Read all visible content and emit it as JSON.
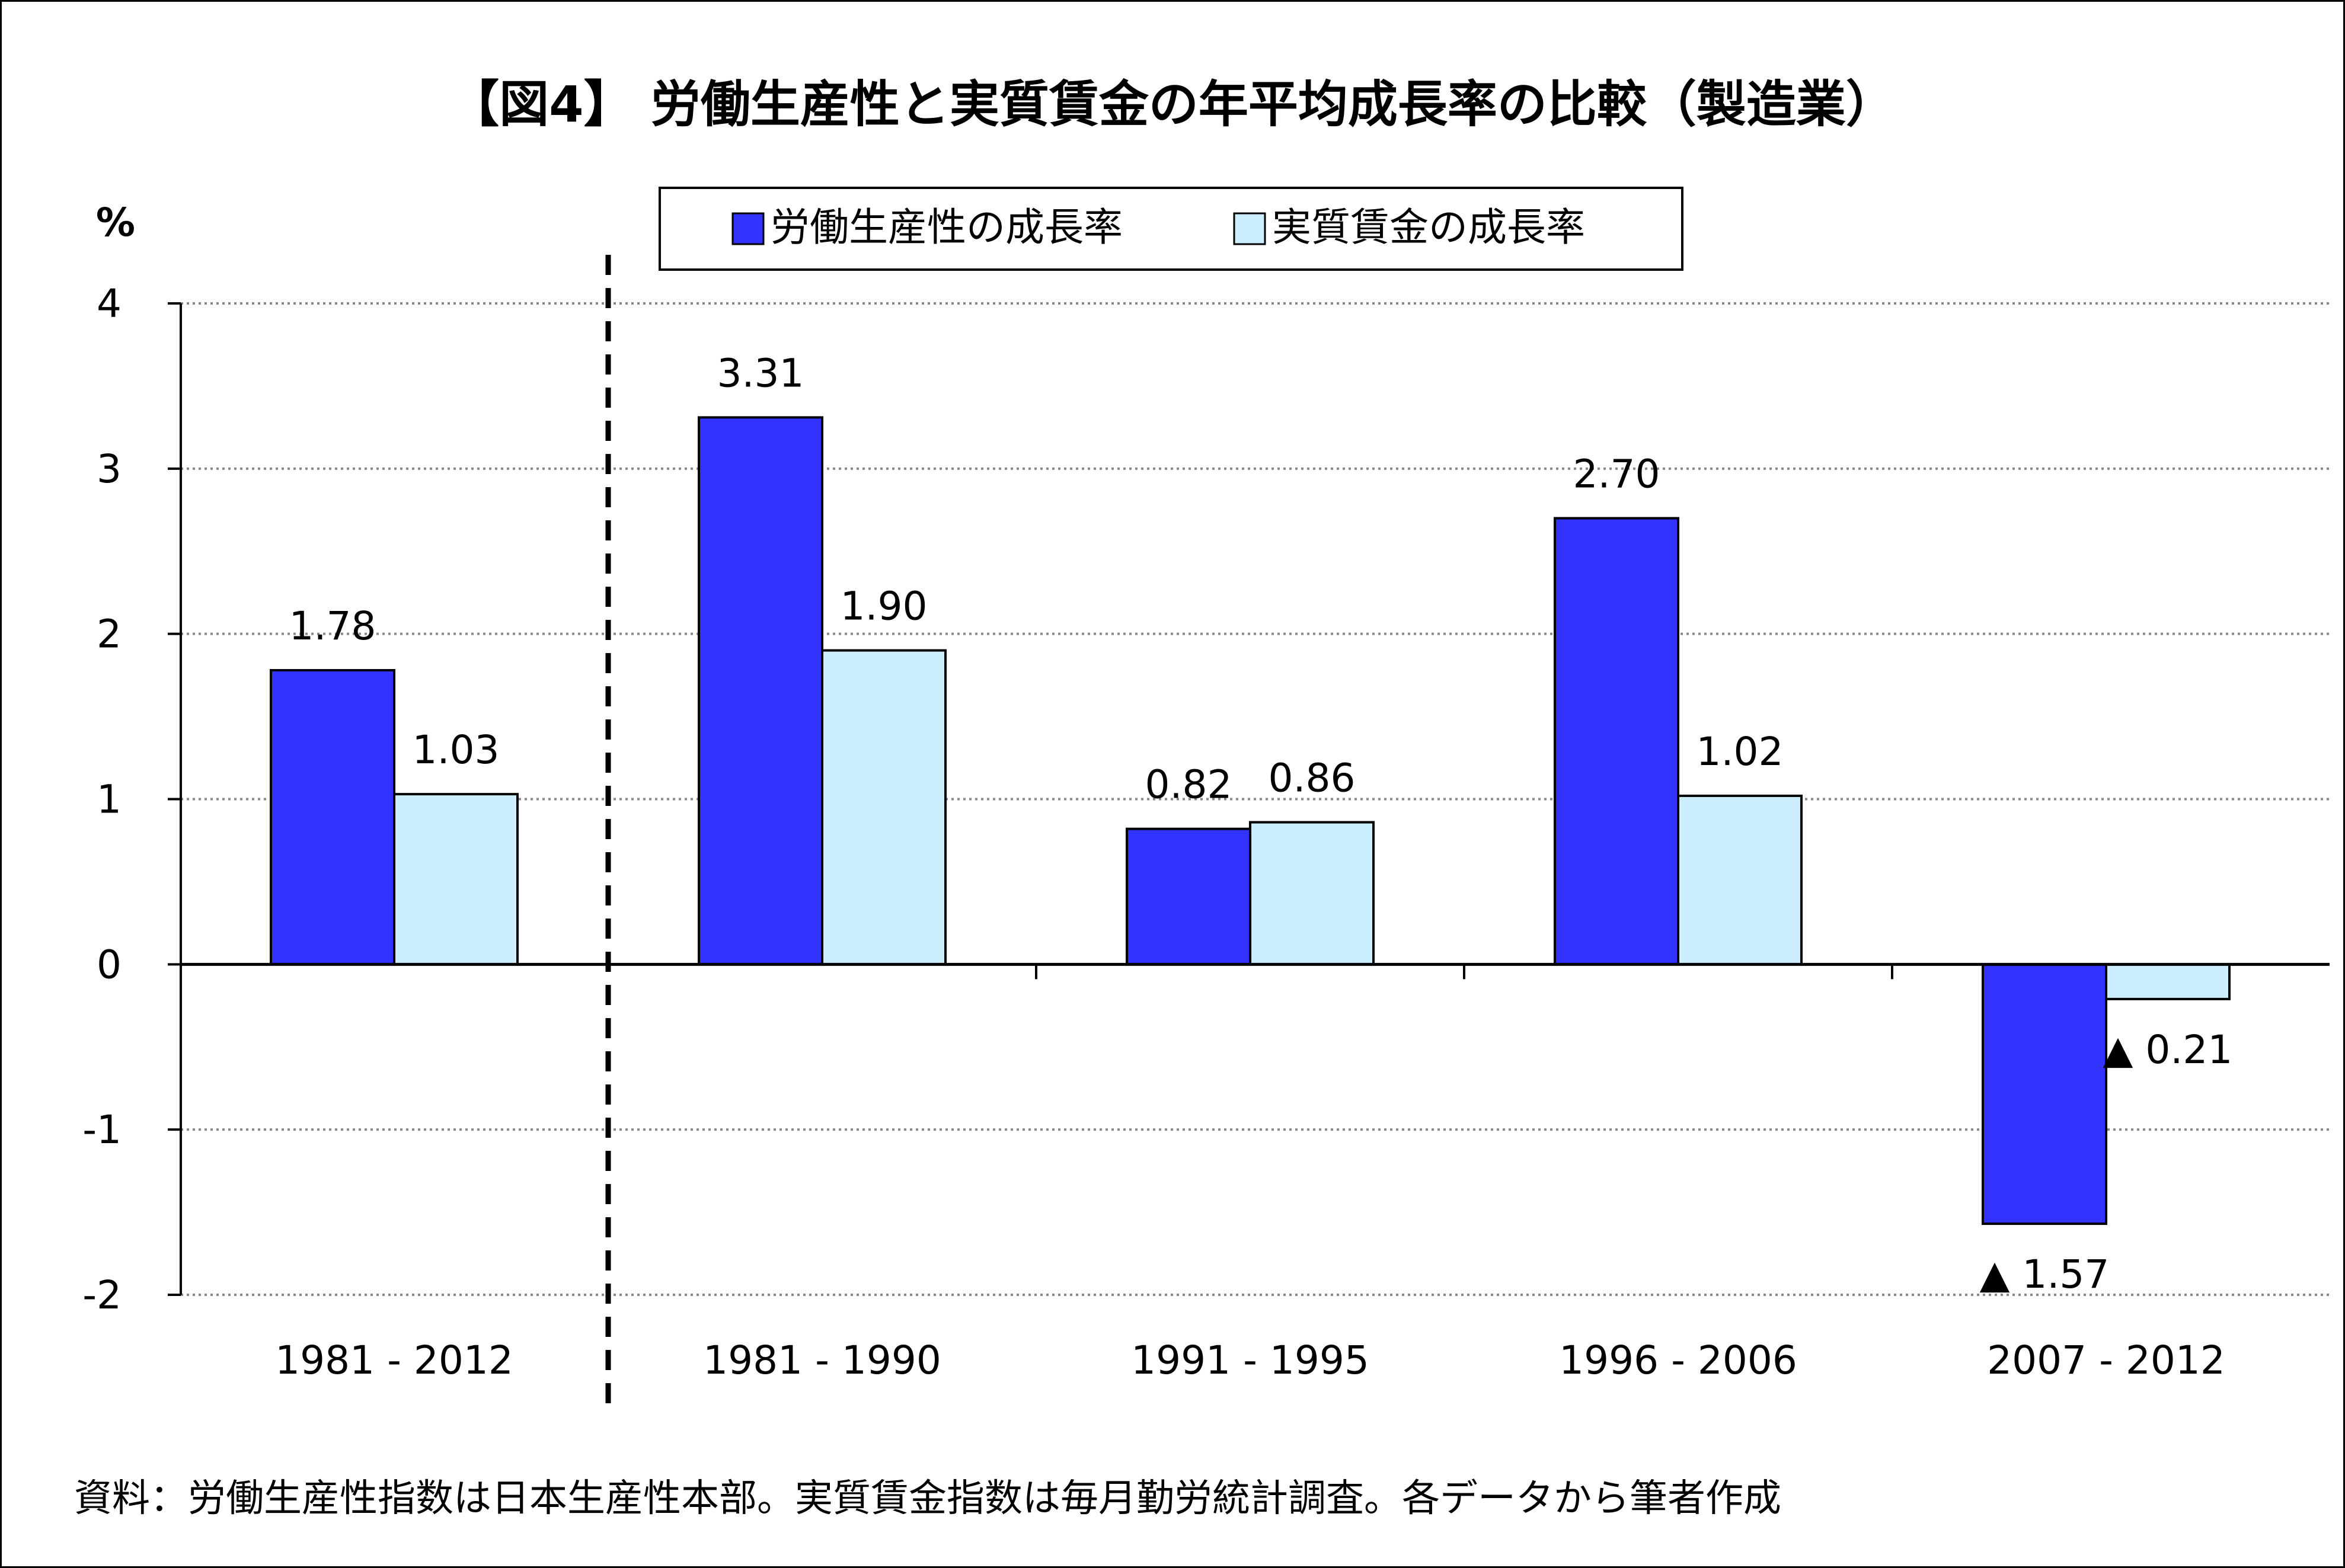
{
  "chart_data": {
    "type": "bar",
    "title": "【図4】 労働生産性と実質賃金の年平均成長率の比較（製造業）",
    "ylabel": "%",
    "ylim": [
      -2,
      4
    ],
    "yticks": [
      4,
      3,
      2,
      1,
      0,
      -1,
      -2
    ],
    "grid": true,
    "legend_position": "top-center",
    "categories": [
      "1981 - 2012",
      "1981 - 1990",
      "1991 - 1995",
      "1996 - 2006",
      "2007 - 2012"
    ],
    "series": [
      {
        "name": "労働生産性の成長率",
        "color": "#3333ff",
        "values": [
          1.78,
          3.31,
          0.82,
          2.7,
          -1.57
        ],
        "labels": [
          "1.78",
          "3.31",
          "0.82",
          "2.70",
          "▲ 1.57"
        ]
      },
      {
        "name": "実質賃金の成長率",
        "color": "#cceeff",
        "values": [
          1.03,
          1.9,
          0.86,
          1.02,
          -0.21
        ],
        "labels": [
          "1.03",
          "1.90",
          "0.86",
          "1.02",
          "▲ 0.21"
        ]
      }
    ],
    "separator_after_category": 0,
    "source": "資料：労働生産性指数は日本生産性本部。実質賃金指数は毎月勤労統計調査。各データから筆者作成"
  }
}
